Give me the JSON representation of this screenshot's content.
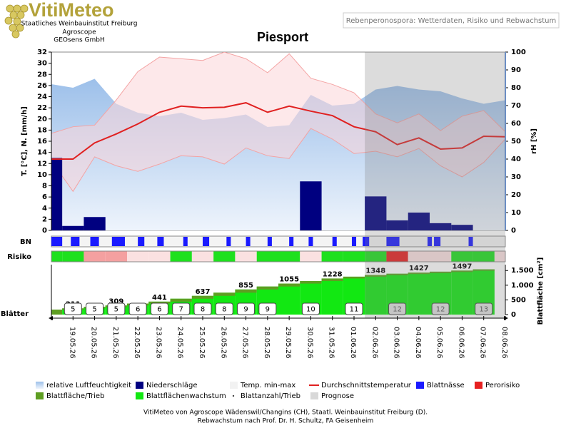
{
  "logo": {
    "title": "VitiMeteo",
    "lines": [
      "Staatliches Weinbauinstitut Freiburg",
      "Agroscope",
      "GEOsens GmbH"
    ]
  },
  "header": "Rebenperonospora: Wetterdaten, Risiko und Rebwachstum",
  "chart_data": {
    "type": "combo",
    "title": "Piesport",
    "ylabel": "T. [°C], N. [mm/h]",
    "y2label": "rH [%]",
    "y3label": "Blattfläche [cm²]",
    "row_labels": {
      "wetness": "BN",
      "risk": "Risiko",
      "leaves": "Blätter"
    },
    "categories": [
      null,
      "19.05.26",
      "20.05.26",
      "21.05.26",
      "22.05.26",
      "23.05.26",
      "24.05.26",
      "25.05.26",
      "26.05.26",
      "27.05.26",
      "28.05.26",
      "29.05.26",
      "30.05.26",
      "31.05.26",
      "01.06.26",
      "02.06.26",
      "03.06.26",
      "04.06.26",
      "05.06.26",
      "06.06.26",
      "07.06.26",
      "08.06.26"
    ],
    "ylim": [
      0,
      32
    ],
    "yticks": [
      0,
      2,
      4,
      6,
      8,
      10,
      12,
      14,
      16,
      18,
      20,
      22,
      24,
      26,
      28,
      30,
      32
    ],
    "y2lim": [
      0,
      100
    ],
    "y2ticks": [
      0,
      10,
      20,
      30,
      40,
      50,
      60,
      70,
      80,
      90,
      100
    ],
    "y3lim": [
      0,
      1700
    ],
    "y3ticks": [
      0,
      500,
      {
        "value": 1000,
        "label": "1.000"
      },
      {
        "value": 1500,
        "label": "1.500"
      }
    ],
    "humidity": {
      "name": "relative Luftfeuchtigkeit",
      "color": "#9dc0ea",
      "axis": "y2",
      "values": [
        82,
        80,
        85,
        71,
        66,
        64,
        66,
        62,
        63,
        65,
        58,
        59,
        76,
        70,
        71,
        79,
        81,
        79,
        78,
        74,
        71,
        73
      ]
    },
    "precipitation": {
      "name": "Niederschläge",
      "color": "#000080",
      "values": [
        13,
        0.8,
        2.4,
        0,
        0,
        0,
        0,
        0,
        0,
        0,
        0,
        0,
        8.8,
        0,
        0,
        6.1,
        1.8,
        3.2,
        1.3,
        1.0,
        0,
        0
      ]
    },
    "temperature": {
      "name": "Temp. min-max",
      "color": "#f4a3a3",
      "fill": "#fbd6d8",
      "min": [
        12.5,
        7.0,
        13.2,
        11.6,
        10.6,
        11.9,
        13.4,
        13.2,
        11.9,
        14.8,
        13.4,
        12.9,
        18.3,
        16.4,
        13.8,
        14.2,
        13.2,
        14.7,
        11.6,
        9.6,
        12.2,
        16.4
      ],
      "max": [
        17.4,
        18.6,
        18.9,
        23.4,
        28.5,
        31.1,
        30.8,
        30.5,
        32,
        30.8,
        28.3,
        31.7,
        27.3,
        26.2,
        24.7,
        20.9,
        19.3,
        20.9,
        17.9,
        20.5,
        21.5,
        17.7
      ]
    },
    "temp_avg": {
      "name": "Durchschnittstemperatur",
      "color": "#e02020",
      "values": [
        12.8,
        12.8,
        15.7,
        17.3,
        19.1,
        21.2,
        22.3,
        22.0,
        22.1,
        22.9,
        21.2,
        22.3,
        21.4,
        20.6,
        18.6,
        17.7,
        15.4,
        16.6,
        14.6,
        14.8,
        16.9,
        16.8
      ]
    },
    "leaf_wetness": {
      "name": "Blattnässe",
      "color": "#1a1aff",
      "intervals": [
        [
          0.0,
          0.5
        ],
        [
          0.9,
          1.3
        ],
        [
          1.8,
          2.2
        ],
        [
          2.8,
          3.4
        ],
        [
          4.0,
          4.3
        ],
        [
          4.9,
          5.2
        ],
        [
          6.1,
          6.3
        ],
        [
          7.0,
          7.3
        ],
        [
          8.1,
          8.3
        ],
        [
          9.0,
          9.2
        ],
        [
          10.0,
          10.2
        ],
        [
          11.0,
          11.2
        ],
        [
          11.9,
          12.1
        ],
        [
          13.0,
          13.2
        ],
        [
          13.9,
          14.1
        ],
        [
          14.4,
          14.7
        ],
        [
          15.5,
          16.1
        ],
        [
          17.4,
          17.6
        ],
        [
          17.7,
          18.0
        ],
        [
          19.3,
          19.5
        ]
      ]
    },
    "risk": {
      "name": "Perorisiko",
      "color": "#e62020",
      "level_colors": [
        "#fbe1e1",
        "#1ee01e",
        "#f4a0a0",
        "#e62020"
      ],
      "levels": [
        1,
        1,
        2,
        2,
        0,
        0,
        1,
        0,
        1,
        0,
        1,
        1,
        0,
        1,
        1,
        1,
        3,
        0,
        0,
        1,
        1,
        0
      ]
    },
    "leaf_area": {
      "name": "Blattfläche/Trieb",
      "color": "#5e9e22",
      "axis": "y3",
      "values": [
        170,
        211,
        260,
        309,
        375,
        441,
        540,
        637,
        745,
        855,
        955,
        1055,
        1140,
        1228,
        1290,
        1348,
        1390,
        1427,
        1460,
        1497,
        1540,
        null
      ],
      "value_labels": [
        null,
        "211",
        null,
        "309",
        null,
        "441",
        null,
        "637",
        null,
        "855",
        null,
        "1055",
        null,
        "1228",
        null,
        "1348",
        null,
        "1427",
        null,
        "1497",
        null,
        null
      ]
    },
    "leaf_growth": {
      "name": "Blattflächenwachstum",
      "color": "#12e812"
    },
    "leaf_count": {
      "name": "Blattanzahl/Trieb",
      "color": "#444444",
      "values": [
        null,
        5,
        5,
        5,
        6,
        6,
        7,
        8,
        8,
        9,
        9,
        null,
        10,
        null,
        11,
        null,
        12,
        null,
        12,
        null,
        13,
        null
      ]
    },
    "forecast": {
      "name": "Prognose",
      "color": "#d8d8d8",
      "start": 14.5
    }
  },
  "footer": [
    "VitiMeteo von Agroscope Wädenswil/Changins (CH), Staatl. Weinbauinstitut Freiburg (D).",
    "Rebwachstum nach Prof. Dr. H. Schultz, FA Geisenheim"
  ]
}
